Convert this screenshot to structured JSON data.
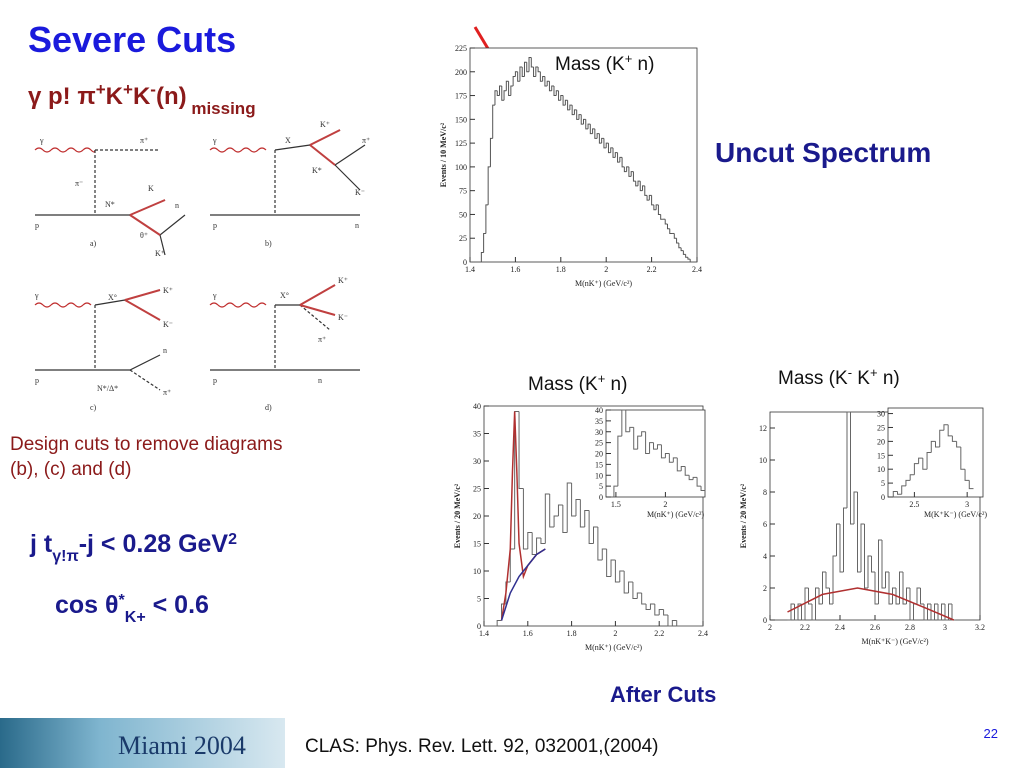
{
  "title": "Severe Cuts",
  "reaction": [
    {
      "text": "γ p! π",
      "sup": false
    },
    {
      "text": "+",
      "sup": true
    },
    {
      "text": "K",
      "sup": false
    },
    {
      "text": "+",
      "sup": true
    },
    {
      "text": "K",
      "sup": false
    },
    {
      "text": "-",
      "sup": true
    },
    {
      "text": "(n)",
      "sup": false
    },
    {
      "text": " missing",
      "sub": true
    }
  ],
  "diagrams": [
    {
      "panel": "a)",
      "labels": [
        "γ",
        "π⁺",
        "π⁻",
        "K",
        "N*",
        "p",
        "n",
        "θ⁺",
        "K⁺"
      ]
    },
    {
      "panel": "b)",
      "labels": [
        "γ",
        "X",
        "K⁺",
        "K*",
        "π⁺",
        "K⁻",
        "p",
        "n"
      ]
    },
    {
      "panel": "c)",
      "labels": [
        "γ",
        "X°",
        "K⁺",
        "K⁻",
        "n",
        "p",
        "N*/Δ*",
        "π⁺"
      ]
    },
    {
      "panel": "d)",
      "labels": [
        "γ",
        "X°",
        "K⁺",
        "K⁻",
        "π⁺",
        "p",
        "n"
      ]
    }
  ],
  "note": "Design cuts to remove diagrams (b), (c) and (d)",
  "cut1": [
    {
      "text": "j t",
      "sup": false
    },
    {
      "text": "γ!π",
      "sub": true
    },
    {
      "text": "-j < 0.28 GeV",
      "sup": false
    },
    {
      "text": "2",
      "sup": true
    }
  ],
  "cut2": [
    {
      "text": "cos θ",
      "sup": false
    },
    {
      "text": "*",
      "sup": true
    },
    {
      "text": "K+",
      "sub": true
    },
    {
      "text": " < 0.6",
      "sup": false
    }
  ],
  "uncut_label": "Uncut Spectrum",
  "after_label": "After Cuts",
  "citation": "CLAS: Phys. Rev. Lett. 92, 032001,(2004)",
  "page_number": "22",
  "logo": "Miami 2004",
  "chart_data": [
    {
      "type": "histogram",
      "title": [
        {
          "text": "Mass (K",
          "sup": false
        },
        {
          "text": "+",
          "sup": true
        },
        {
          "text": " n)",
          "sup": false
        }
      ],
      "x_label": "M(nK⁺)  (GeV/c²)",
      "y_label": "Events / 10 MeV/c²",
      "color": "#555",
      "bins": [
        1.4,
        1.41,
        1.42,
        1.43,
        1.44,
        1.45,
        1.46,
        1.47,
        1.48,
        1.49,
        1.5,
        1.51,
        1.52,
        1.53,
        1.54,
        1.55,
        1.56,
        1.57,
        1.58,
        1.59,
        1.6,
        1.61,
        1.62,
        1.63,
        1.64,
        1.65,
        1.66,
        1.67,
        1.68,
        1.69,
        1.7,
        1.71,
        1.72,
        1.73,
        1.74,
        1.75,
        1.76,
        1.77,
        1.78,
        1.79,
        1.8,
        1.81,
        1.82,
        1.83,
        1.84,
        1.85,
        1.86,
        1.87,
        1.88,
        1.89,
        1.9,
        1.91,
        1.92,
        1.93,
        1.94,
        1.95,
        1.96,
        1.97,
        1.98,
        1.99,
        2,
        2.01,
        2.02,
        2.03,
        2.04,
        2.05,
        2.06,
        2.07,
        2.08,
        2.09,
        2.1,
        2.11,
        2.12,
        2.13,
        2.14,
        2.15,
        2.16,
        2.17,
        2.18,
        2.19,
        2.2,
        2.21,
        2.22,
        2.23,
        2.24,
        2.25,
        2.26,
        2.27,
        2.28,
        2.29,
        2.3,
        2.31,
        2.32,
        2.33,
        2.34,
        2.35,
        2.36,
        2.37,
        2.38,
        2.39,
        2.4
      ],
      "values": [
        0,
        0,
        0,
        0,
        0,
        10,
        30,
        60,
        100,
        130,
        165,
        180,
        175,
        185,
        170,
        180,
        190,
        175,
        185,
        195,
        200,
        190,
        205,
        195,
        210,
        200,
        215,
        205,
        195,
        205,
        200,
        190,
        195,
        185,
        190,
        180,
        185,
        175,
        180,
        170,
        175,
        165,
        170,
        160,
        165,
        155,
        160,
        150,
        155,
        145,
        150,
        140,
        145,
        135,
        140,
        130,
        135,
        125,
        130,
        120,
        125,
        115,
        120,
        110,
        115,
        105,
        110,
        100,
        95,
        100,
        90,
        95,
        85,
        80,
        85,
        75,
        80,
        70,
        65,
        70,
        60,
        55,
        60,
        50,
        45,
        45,
        40,
        35,
        30,
        30,
        25,
        20,
        15,
        12,
        8,
        5,
        3,
        0,
        0,
        0
      ],
      "xlim": [
        1.4,
        2.4
      ],
      "xticks": [
        1.4,
        1.6,
        1.8,
        2,
        2.2,
        2.4
      ],
      "ylim": [
        0,
        225
      ],
      "yticks": [
        0,
        25,
        50,
        75,
        100,
        125,
        150,
        175,
        200,
        225
      ]
    },
    {
      "type": "histogram",
      "title": [
        {
          "text": "Mass (K",
          "sup": false
        },
        {
          "text": "+",
          "sup": true
        },
        {
          "text": " n)",
          "sup": false
        }
      ],
      "x_label": "M(nK⁺)  (GeV/c²)",
      "y_label": "Events / 20 MeV/c²",
      "color": "#666",
      "bins": [
        1.4,
        1.42,
        1.44,
        1.46,
        1.48,
        1.5,
        1.52,
        1.54,
        1.56,
        1.58,
        1.6,
        1.62,
        1.64,
        1.66,
        1.68,
        1.7,
        1.72,
        1.74,
        1.76,
        1.78,
        1.8,
        1.82,
        1.84,
        1.86,
        1.88,
        1.9,
        1.92,
        1.94,
        1.96,
        1.98,
        2,
        2.02,
        2.04,
        2.06,
        2.08,
        2.1,
        2.12,
        2.14,
        2.16,
        2.18,
        2.2,
        2.22,
        2.24,
        2.26,
        2.28,
        2.3,
        2.32,
        2.34,
        2.36,
        2.38,
        2.4
      ],
      "values": [
        0,
        0,
        0,
        1,
        4,
        8,
        14,
        39,
        25,
        14,
        17,
        13,
        16,
        15,
        24,
        18,
        20,
        22,
        17,
        26,
        20,
        23,
        18,
        21,
        15,
        18,
        12,
        14,
        9,
        12,
        8,
        10,
        6,
        8,
        5,
        6,
        4,
        3,
        4,
        2,
        3,
        2,
        0,
        1,
        0,
        0,
        0,
        0,
        0,
        0
      ],
      "xlim": [
        1.4,
        2.4
      ],
      "xticks": [
        1.4,
        1.6,
        1.8,
        2,
        2.2,
        2.4
      ],
      "ylim": [
        0,
        40
      ],
      "yticks": [
        0,
        5,
        10,
        15,
        20,
        25,
        30,
        35,
        40
      ],
      "fits": [
        {
          "color": "#b03030",
          "x": [
            1.48,
            1.5,
            1.52,
            1.53,
            1.54,
            1.55,
            1.56,
            1.58,
            1.6,
            1.64,
            1.68
          ],
          "values": [
            1,
            6,
            14,
            28,
            39,
            28,
            15,
            9,
            11,
            13,
            14
          ]
        },
        {
          "color": "#303090",
          "x": [
            1.48,
            1.52,
            1.56,
            1.6,
            1.64,
            1.68
          ],
          "values": [
            1,
            6,
            9,
            11,
            13,
            14
          ]
        }
      ],
      "inset": {
        "type": "histogram",
        "x_label": "M(nK⁺)  (GeV/c²)",
        "color": "#666",
        "bins": [
          1.48,
          1.52,
          1.56,
          1.6,
          1.64,
          1.68,
          1.72,
          1.76,
          1.8,
          1.84,
          1.88,
          1.92,
          1.96,
          2,
          2.04,
          2.08,
          2.12,
          2.16,
          2.2,
          2.24,
          2.28,
          2.32,
          2.36,
          2.4
        ],
        "values": [
          5,
          28,
          40,
          30,
          32,
          22,
          28,
          30,
          20,
          25,
          22,
          24,
          18,
          20,
          16,
          18,
          12,
          14,
          10,
          8,
          9,
          5,
          3
        ],
        "xlim": [
          1.4,
          2.4
        ],
        "xticks": [
          1.5,
          2
        ],
        "ylim": [
          0,
          40
        ],
        "yticks": [
          0,
          5,
          10,
          15,
          20,
          25,
          30,
          35,
          40
        ]
      }
    },
    {
      "type": "histogram",
      "title": [
        {
          "text": "Mass (K",
          "sup": false
        },
        {
          "text": "-",
          "sup": true
        },
        {
          "text": " K",
          "sup": false
        },
        {
          "text": "+",
          "sup": true
        },
        {
          "text": " n)",
          "sup": false
        }
      ],
      "x_label": "M(nK⁺K⁻)  (GeV/c²)",
      "y_label": "Events / 20 MeV/c²",
      "color": "#666",
      "bins": [
        2.1,
        2.12,
        2.14,
        2.16,
        2.18,
        2.2,
        2.22,
        2.24,
        2.26,
        2.28,
        2.3,
        2.32,
        2.34,
        2.36,
        2.38,
        2.4,
        2.42,
        2.44,
        2.46,
        2.48,
        2.5,
        2.52,
        2.54,
        2.56,
        2.58,
        2.6,
        2.62,
        2.64,
        2.66,
        2.68,
        2.7,
        2.72,
        2.74,
        2.76,
        2.78,
        2.8,
        2.82,
        2.84,
        2.86,
        2.88,
        2.9,
        2.92,
        2.94,
        2.96,
        2.98,
        3,
        3.02,
        3.04,
        3.06
      ],
      "values": [
        0,
        1,
        0,
        1,
        0,
        2,
        1,
        0,
        2,
        1,
        3,
        2,
        1,
        4,
        6,
        3,
        7,
        13,
        6,
        8,
        3,
        6,
        2,
        4,
        3,
        1,
        5,
        2,
        3,
        1,
        2,
        1,
        3,
        1,
        2,
        0,
        1,
        2,
        1,
        0,
        1,
        0,
        1,
        0,
        1,
        0,
        1,
        0
      ],
      "xlim": [
        2,
        3.2
      ],
      "xticks": [
        2,
        2.2,
        2.4,
        2.6,
        2.8,
        3,
        3.2
      ],
      "ylim": [
        0,
        13
      ],
      "yticks": [
        0,
        2,
        4,
        6,
        8,
        10,
        12
      ],
      "fits": [
        {
          "color": "#b03030",
          "x": [
            2.1,
            2.3,
            2.5,
            2.7,
            2.9,
            3.05
          ],
          "values": [
            0.5,
            1.6,
            2,
            1.6,
            0.7,
            0
          ]
        }
      ],
      "inset": {
        "type": "histogram",
        "x_label": "M(K⁺K⁻)  (GeV/c²)",
        "color": "#666",
        "bins": [
          2.3,
          2.34,
          2.38,
          2.42,
          2.46,
          2.5,
          2.54,
          2.58,
          2.62,
          2.66,
          2.7,
          2.74,
          2.78,
          2.82,
          2.86,
          2.9,
          2.94,
          2.98,
          3.02,
          3.06
        ],
        "values": [
          2,
          1,
          4,
          6,
          8,
          12,
          14,
          10,
          16,
          20,
          18,
          24,
          26,
          22,
          20,
          18,
          10,
          6,
          3
        ],
        "xlim": [
          2.25,
          3.15
        ],
        "xticks": [
          2.5,
          3
        ],
        "ylim": [
          0,
          32
        ],
        "yticks": [
          0,
          5,
          10,
          15,
          20,
          25,
          30
        ]
      }
    }
  ]
}
